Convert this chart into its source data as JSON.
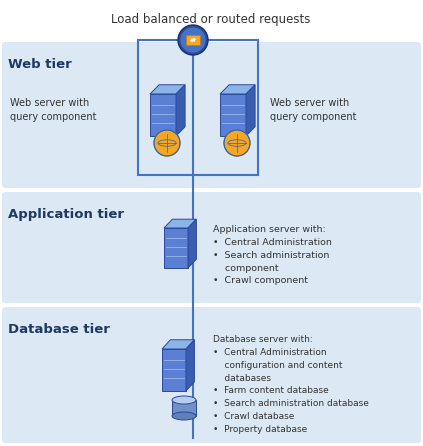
{
  "title": "Load balanced or routed requests",
  "background_color": "#ffffff",
  "tier_bg_color": "#dce9f5",
  "tier_label_color": "#000000",
  "web_server_left_label": "Web server with\nquery component",
  "web_server_right_label": "Web server with\nquery component",
  "app_server_label": "Application server with:\n•  Central Administration\n•  Search administration\n    component\n•  Crawl component",
  "db_server_label": "Database server with:\n•  Central Administration\n    configuration and content\n    databases\n•  Farm content database\n•  Search administration database\n•  Crawl database\n•  Property database",
  "line_color": "#4472c4",
  "tier_header_color": "#1f3864",
  "fig_width": 4.23,
  "fig_height": 4.46,
  "dpi": 100
}
